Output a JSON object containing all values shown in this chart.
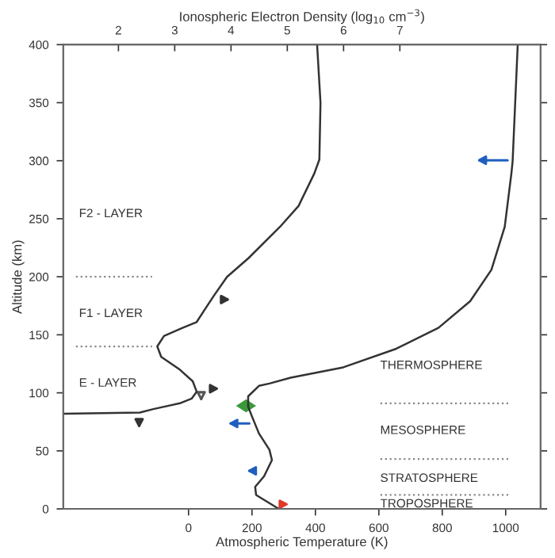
{
  "chart_data": {
    "type": "line",
    "xlabel": "Atmospheric Temperature (K)",
    "ylabel": "Altitude (km)",
    "x2label": "Ionospheric Electron Density (log$_{10}$ cm$^{−3}$)",
    "xlim": [
      -395,
      1110
    ],
    "xticks": [
      0,
      200,
      400,
      600,
      800,
      1000
    ],
    "x2lim": [
      1.02,
      9.5
    ],
    "x2ticks": [
      2,
      3,
      4,
      5,
      6,
      7
    ],
    "ylim": [
      0,
      400
    ],
    "yticks": [
      0,
      50,
      100,
      150,
      200,
      250,
      300,
      350,
      400
    ],
    "grid": false,
    "legend": false,
    "marker": "none",
    "series": [
      {
        "axis": "x2",
        "color": "#333333",
        "line_style": "solid",
        "x": [
          1.02,
          2.38,
          2.62,
          3.09,
          3.3,
          3.39,
          3.32,
          3.09,
          2.76,
          2.69,
          2.81,
          3.14,
          3.39,
          3.51,
          3.7,
          3.93,
          4.31,
          4.87,
          5.2,
          5.48,
          5.57,
          5.59,
          5.53
        ],
        "values": [
          82,
          83,
          86,
          91,
          95,
          101,
          110,
          120,
          131,
          140,
          149,
          156,
          161,
          170,
          184,
          200,
          216,
          243,
          261,
          289,
          301,
          350,
          400
        ]
      },
      {
        "color": "#333333",
        "line_style": "solid",
        "x": [
          285,
          213,
          210,
          238,
          263,
          255,
          222,
          201,
          188,
          188,
          222,
          255,
          322,
          488,
          655,
          788,
          888,
          955,
          997,
          1018,
          1022,
          1038
        ],
        "values": [
          0,
          12,
          19,
          28,
          42,
          51,
          65,
          79,
          88,
          97,
          106,
          108,
          113,
          122,
          138,
          156,
          179,
          206,
          243,
          289,
          300,
          400
        ]
      },
      {
        "color": "#888888",
        "line_style": "dotted",
        "x": [
          -355,
          -115
        ],
        "values": [
          200,
          200
        ]
      },
      {
        "color": "#888888",
        "line_style": "dotted",
        "x": [
          -355,
          -115
        ],
        "values": [
          140,
          140
        ]
      },
      {
        "color": "#888888",
        "line_style": "dotted",
        "x": [
          605,
          1015
        ],
        "values": [
          91,
          91
        ]
      },
      {
        "color": "#888888",
        "line_style": "dotted",
        "x": [
          605,
          1015
        ],
        "values": [
          43,
          43
        ]
      },
      {
        "color": "#888888",
        "line_style": "dotted",
        "x": [
          605,
          1015
        ],
        "values": [
          12,
          12
        ]
      }
    ],
    "annotations": [
      "F2 - LAYER",
      "F1 - LAYER",
      "E - LAYER",
      "THERMOSPHERE",
      "MESOSPHERE",
      "STRATOSPHERE",
      "TROPOSPHERE"
    ]
  }
}
